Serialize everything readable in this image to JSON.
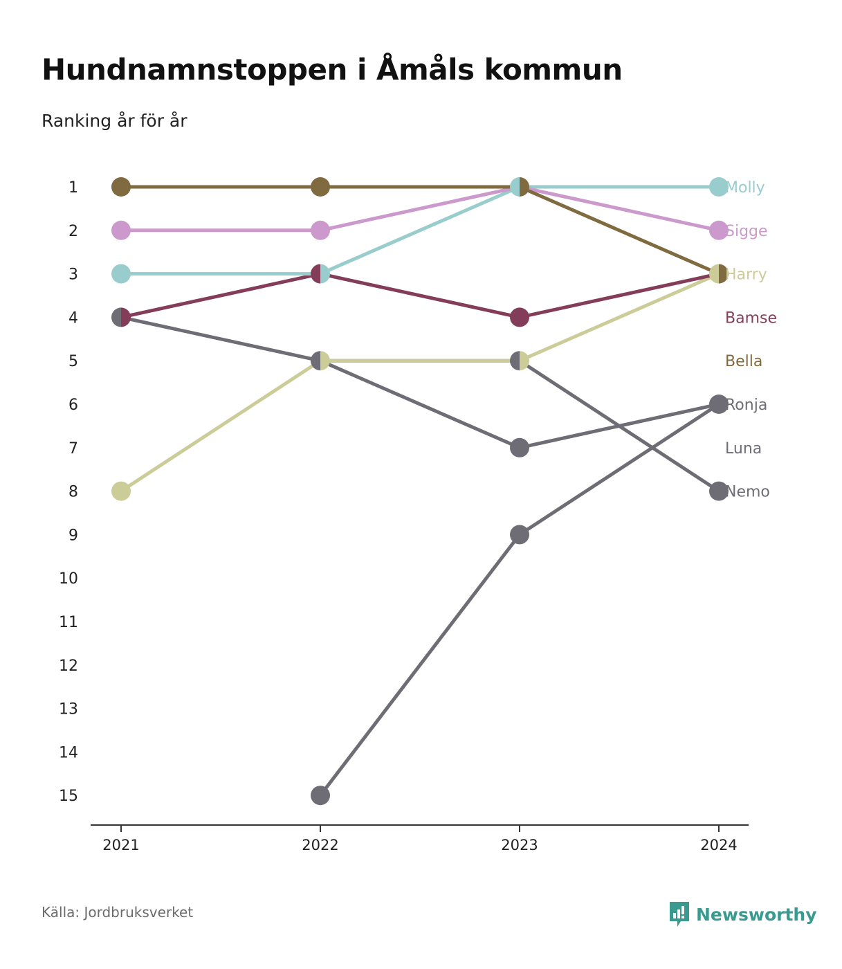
{
  "title": "Hundnamnstoppen i Åmåls kommun",
  "subtitle": "Ranking år för år",
  "source": "Källa: Jordbruksverket",
  "brand": {
    "name": "Newsworthy",
    "color": "#3a9a8f",
    "icon": "newsworthy-logo-icon"
  },
  "chart_data": {
    "type": "line",
    "x": [
      "2021",
      "2022",
      "2023",
      "2024"
    ],
    "y_ticks": [
      1,
      2,
      3,
      4,
      5,
      6,
      7,
      8,
      9,
      10,
      11,
      12,
      13,
      14,
      15
    ],
    "ylim": [
      1,
      15
    ],
    "y_inverted": true,
    "grid": false,
    "legend": "end-labels-right",
    "series": [
      {
        "name": "Luna",
        "color": "#6e6d75",
        "values": [
          null,
          15,
          9,
          6
        ]
      },
      {
        "name": "Nemo",
        "color": "#6e6d75",
        "values": [
          4,
          5,
          5,
          8
        ]
      },
      {
        "name": "Ronja",
        "color": "#6e6d75",
        "values": [
          null,
          5,
          7,
          6
        ]
      },
      {
        "name": "Harry",
        "color": "#cccc99",
        "values": [
          8,
          5,
          5,
          3
        ]
      },
      {
        "name": "Bamse",
        "color": "#843d58",
        "values": [
          4,
          3,
          4,
          3
        ]
      },
      {
        "name": "Molly",
        "color": "#99cccc",
        "values": [
          3,
          3,
          1,
          1
        ]
      },
      {
        "name": "Sigge",
        "color": "#cc99cc",
        "values": [
          2,
          2,
          1,
          2
        ]
      },
      {
        "name": "Bella",
        "color": "#806a3f",
        "values": [
          1,
          1,
          1,
          3
        ]
      }
    ],
    "end_labels": [
      {
        "name": "Molly",
        "rank": 1,
        "color": "#99cccc"
      },
      {
        "name": "Sigge",
        "rank": 2,
        "color": "#cc99cc"
      },
      {
        "name": "Harry",
        "rank": 3,
        "color": "#cccc99"
      },
      {
        "name": "Bamse",
        "rank": 4,
        "color": "#843d58"
      },
      {
        "name": "Bella",
        "rank": 5,
        "color": "#806a3f"
      },
      {
        "name": "Ronja",
        "rank": 6,
        "color": "#6e6d75"
      },
      {
        "name": "Luna",
        "rank": 7,
        "color": "#6e6d75"
      },
      {
        "name": "Nemo",
        "rank": 8,
        "color": "#6e6d75"
      }
    ],
    "axis_color": "#333333"
  }
}
